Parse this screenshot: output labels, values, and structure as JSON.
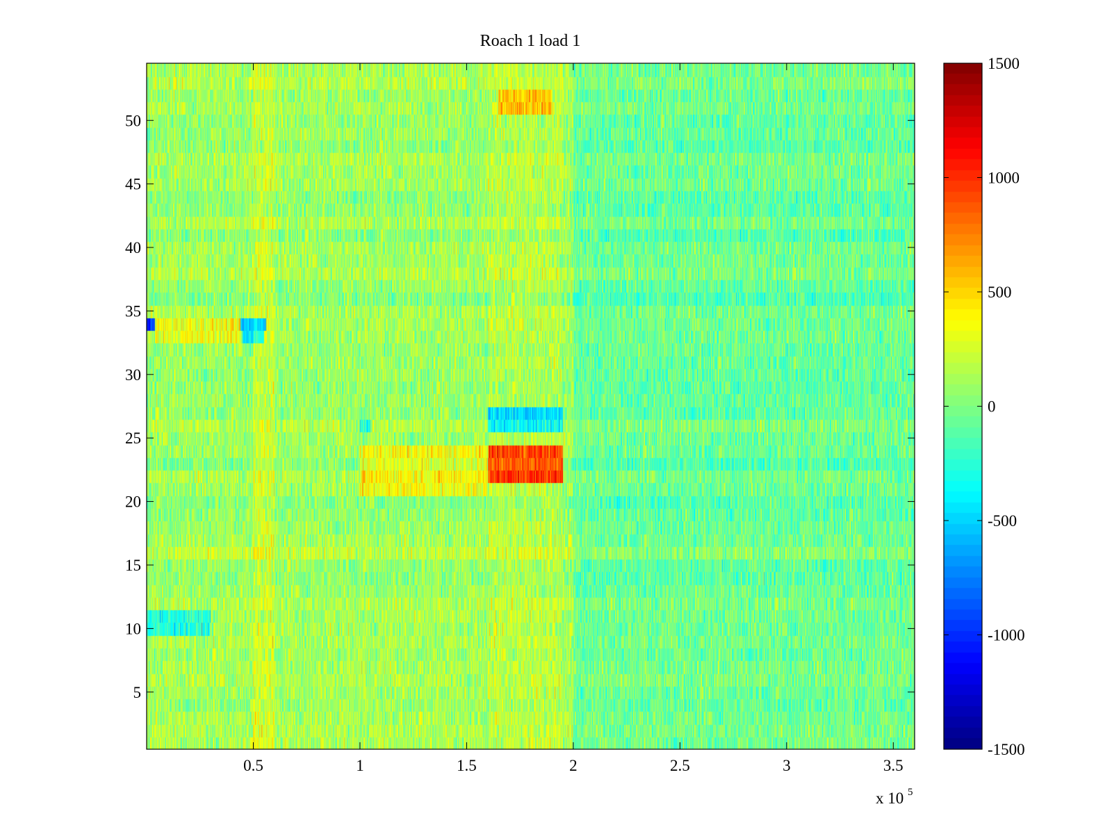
{
  "chart_data": {
    "type": "heatmap",
    "title": "Roach 1 load 1",
    "xlabel": "",
    "ylabel": "",
    "x_multiplier_label": "x 10",
    "x_multiplier_exponent": "5",
    "xlim": [
      0,
      3.6
    ],
    "ylim": [
      0.5,
      54.5
    ],
    "rows": 54,
    "x_ticks": [
      {
        "value": 0.5,
        "label": "0.5"
      },
      {
        "value": 1,
        "label": "1"
      },
      {
        "value": 1.5,
        "label": "1.5"
      },
      {
        "value": 2,
        "label": "2"
      },
      {
        "value": 2.5,
        "label": "2.5"
      },
      {
        "value": 3,
        "label": "3"
      },
      {
        "value": 3.5,
        "label": "3.5"
      }
    ],
    "y_ticks": [
      {
        "value": 5,
        "label": "5"
      },
      {
        "value": 10,
        "label": "10"
      },
      {
        "value": 15,
        "label": "15"
      },
      {
        "value": 20,
        "label": "20"
      },
      {
        "value": 25,
        "label": "25"
      },
      {
        "value": 30,
        "label": "30"
      },
      {
        "value": 35,
        "label": "35"
      },
      {
        "value": 40,
        "label": "40"
      },
      {
        "value": 45,
        "label": "45"
      },
      {
        "value": 50,
        "label": "50"
      }
    ],
    "colorbar": {
      "colormap": "jet",
      "clim": [
        -1500,
        1500
      ],
      "ticks": [
        {
          "value": 1500,
          "label": "1500"
        },
        {
          "value": 1000,
          "label": "1000"
        },
        {
          "value": 500,
          "label": "500"
        },
        {
          "value": 0,
          "label": "0"
        },
        {
          "value": -500,
          "label": "-500"
        },
        {
          "value": -1000,
          "label": "-1000"
        },
        {
          "value": -1500,
          "label": "-1500"
        }
      ]
    },
    "background_mean": 100,
    "background_noise": 260,
    "features": [
      {
        "rows": [
          22,
          24
        ],
        "x_range": [
          1.6,
          1.95
        ],
        "value": 1000
      },
      {
        "rows": [
          21,
          24
        ],
        "x_range": [
          1.0,
          1.6
        ],
        "value": 400
      },
      {
        "rows": [
          26,
          27
        ],
        "x_range": [
          1.6,
          1.95
        ],
        "value": -600
      },
      {
        "rows": [
          26,
          26
        ],
        "x_range": [
          1.0,
          1.05
        ],
        "value": -450
      },
      {
        "rows": [
          51,
          52
        ],
        "x_range": [
          1.65,
          1.9
        ],
        "value": 550
      },
      {
        "rows": [
          34,
          34
        ],
        "x_range": [
          0.0,
          0.04
        ],
        "value": -1200
      },
      {
        "rows": [
          34,
          34
        ],
        "x_range": [
          0.44,
          0.56
        ],
        "value": -700
      },
      {
        "rows": [
          33,
          33
        ],
        "x_range": [
          0.45,
          0.55
        ],
        "value": -500
      },
      {
        "rows": [
          33,
          34
        ],
        "x_range": [
          0.04,
          0.44
        ],
        "value": 350
      },
      {
        "rows": [
          10,
          11
        ],
        "x_range": [
          0.0,
          0.3
        ],
        "value": -350
      },
      {
        "rows": [
          1,
          54
        ],
        "x_range": [
          0.5,
          0.6
        ],
        "value": 250
      },
      {
        "rows": [
          1,
          54
        ],
        "x_range": [
          1.6,
          1.95
        ],
        "value": 180
      },
      {
        "rows": [
          1,
          54
        ],
        "x_range": [
          2.0,
          3.6
        ],
        "value": -80
      }
    ]
  }
}
